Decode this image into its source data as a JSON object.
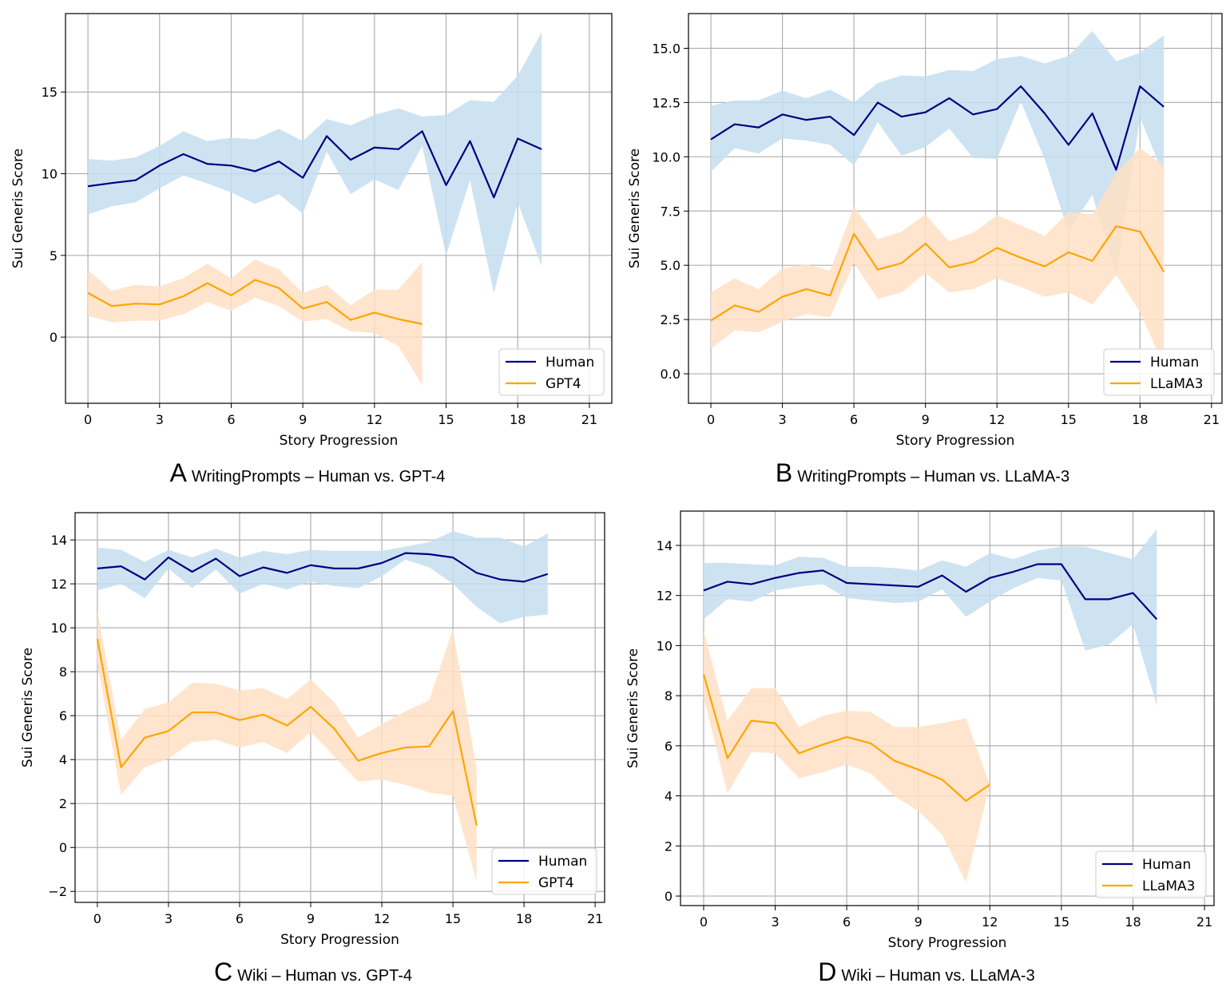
{
  "chart_data": [
    {
      "type": "line",
      "panel_label": "A",
      "title": "WritingPrompts – Human vs. GPT-4",
      "xlabel": "Story Progression",
      "ylabel": "Sui Generis Score",
      "xlim": [
        -0.94,
        21.94
      ],
      "ylim": [
        -4.05,
        19.8
      ],
      "xticks": [
        0,
        3,
        6,
        9,
        12,
        15,
        18,
        21
      ],
      "yticks": [
        0,
        5,
        10,
        15
      ],
      "ytick_labels": [
        "0",
        "5",
        "10",
        "15"
      ],
      "grid": true,
      "legend": "lower-right",
      "series": [
        {
          "name": "Human",
          "color": "#000080",
          "band_color": "#c5def0",
          "x": [
            0,
            1,
            2,
            3,
            4,
            5,
            6,
            7,
            8,
            9,
            10,
            11,
            12,
            13,
            14,
            15,
            16,
            17,
            18,
            19
          ],
          "values": [
            9.23,
            9.43,
            9.6,
            10.5,
            11.2,
            10.6,
            10.5,
            10.15,
            10.75,
            9.75,
            12.3,
            10.85,
            11.6,
            11.5,
            12.6,
            9.3,
            12.0,
            8.55,
            12.15,
            11.5
          ],
          "upper": [
            10.9,
            10.8,
            11.0,
            11.7,
            12.6,
            12.0,
            12.2,
            12.1,
            12.75,
            12.0,
            13.35,
            12.95,
            13.6,
            14.0,
            13.5,
            13.6,
            14.5,
            14.4,
            16.0,
            18.65
          ],
          "lower": [
            7.5,
            8.0,
            8.25,
            9.1,
            9.9,
            9.4,
            8.85,
            8.15,
            8.75,
            7.55,
            11.35,
            8.75,
            9.65,
            9.0,
            11.7,
            5.0,
            9.6,
            2.7,
            8.25,
            4.35
          ]
        },
        {
          "name": "GPT4",
          "color": "#ffa500",
          "band_color": "#ffe0c4",
          "x": [
            0,
            1,
            2,
            3,
            4,
            5,
            6,
            7,
            8,
            9,
            10,
            11,
            12,
            13,
            14
          ],
          "values": [
            2.7,
            1.9,
            2.05,
            2.0,
            2.5,
            3.3,
            2.55,
            3.5,
            3.0,
            1.75,
            2.15,
            1.05,
            1.5,
            1.1,
            0.8
          ],
          "upper": [
            4.1,
            2.85,
            3.2,
            3.1,
            3.6,
            4.5,
            3.6,
            4.75,
            4.15,
            2.7,
            3.2,
            1.95,
            2.9,
            2.9,
            4.6
          ],
          "lower": [
            1.3,
            0.9,
            1.0,
            1.0,
            1.4,
            2.15,
            1.6,
            2.4,
            1.9,
            0.95,
            1.1,
            0.35,
            0.25,
            -0.55,
            -2.95
          ]
        }
      ]
    },
    {
      "type": "line",
      "panel_label": "B",
      "title": "WritingPrompts – Human vs. LLaMA-3",
      "xlabel": "Story Progression",
      "ylabel": "Sui Generis Score",
      "xlim": [
        -0.94,
        21.44
      ],
      "ylim": [
        -1.36,
        16.6
      ],
      "xticks": [
        0,
        3,
        6,
        9,
        12,
        15,
        18,
        21
      ],
      "yticks": [
        0,
        2.5,
        5,
        7.5,
        10,
        12.5,
        15
      ],
      "ytick_labels": [
        "0.0",
        "2.5",
        "5.0",
        "7.5",
        "10.0",
        "12.5",
        "15.0"
      ],
      "grid": true,
      "legend": "lower-right",
      "series": [
        {
          "name": "Human",
          "color": "#000080",
          "band_color": "#c5def0",
          "x": [
            0,
            1,
            2,
            3,
            4,
            5,
            6,
            7,
            8,
            9,
            10,
            11,
            12,
            13,
            14,
            15,
            16,
            17,
            18,
            19
          ],
          "values": [
            10.8,
            11.5,
            11.35,
            11.95,
            11.7,
            11.85,
            11.0,
            12.5,
            11.85,
            12.05,
            12.7,
            11.95,
            12.2,
            13.25,
            12.0,
            10.55,
            12.0,
            9.4,
            13.25,
            12.3
          ],
          "upper": [
            12.35,
            12.6,
            12.6,
            13.05,
            12.7,
            13.1,
            12.5,
            13.4,
            13.75,
            13.7,
            14.0,
            13.95,
            14.5,
            14.65,
            14.3,
            14.65,
            15.8,
            14.4,
            14.8,
            15.6
          ],
          "lower": [
            9.3,
            10.4,
            10.15,
            10.85,
            10.75,
            10.55,
            9.6,
            11.6,
            10.05,
            10.45,
            11.3,
            9.95,
            9.9,
            12.55,
            9.9,
            6.55,
            8.25,
            4.5,
            11.8,
            9.15
          ]
        },
        {
          "name": "LLaMA3",
          "color": "#ffa500",
          "band_color": "#ffe0c4",
          "x": [
            0,
            1,
            2,
            3,
            4,
            5,
            6,
            7,
            8,
            9,
            10,
            11,
            12,
            13,
            14,
            15,
            16,
            17,
            18,
            19
          ],
          "values": [
            2.45,
            3.15,
            2.85,
            3.55,
            3.9,
            3.6,
            6.45,
            4.8,
            5.1,
            6.0,
            4.9,
            5.15,
            5.8,
            5.35,
            4.95,
            5.6,
            5.2,
            6.8,
            6.55,
            4.7
          ],
          "upper": [
            3.75,
            4.4,
            3.9,
            4.85,
            5.05,
            4.75,
            7.7,
            6.2,
            6.55,
            7.35,
            6.1,
            6.5,
            7.3,
            6.85,
            6.35,
            7.45,
            7.35,
            9.25,
            10.4,
            9.6
          ],
          "lower": [
            1.15,
            2.0,
            1.9,
            2.4,
            2.75,
            2.6,
            5.1,
            3.45,
            3.75,
            4.65,
            3.75,
            3.9,
            4.4,
            4.0,
            3.55,
            3.75,
            3.2,
            4.55,
            2.85,
            0.35
          ]
        }
      ]
    },
    {
      "type": "line",
      "panel_label": "C",
      "title": "Wiki – Human vs. GPT-4",
      "xlabel": "Story Progression",
      "ylabel": "Sui Generis Score",
      "xlim": [
        -0.94,
        21.4
      ],
      "ylim": [
        -2.5,
        15.24
      ],
      "xticks": [
        0,
        3,
        6,
        9,
        12,
        15,
        18,
        21
      ],
      "yticks": [
        -2,
        0,
        2,
        4,
        6,
        8,
        10,
        12,
        14
      ],
      "ytick_labels": [
        "−2",
        "0",
        "2",
        "4",
        "6",
        "8",
        "10",
        "12",
        "14"
      ],
      "grid": true,
      "legend": "lower-right",
      "series": [
        {
          "name": "Human",
          "color": "#000080",
          "band_color": "#c5def0",
          "x": [
            0,
            1,
            2,
            3,
            4,
            5,
            6,
            7,
            8,
            9,
            10,
            11,
            12,
            13,
            14,
            15,
            16,
            17,
            18,
            19
          ],
          "values": [
            12.7,
            12.8,
            12.2,
            13.2,
            12.55,
            13.15,
            12.35,
            12.75,
            12.5,
            12.85,
            12.7,
            12.7,
            12.95,
            13.4,
            13.35,
            13.2,
            12.5,
            12.2,
            12.1,
            12.45
          ],
          "upper": [
            13.65,
            13.55,
            13.0,
            13.55,
            13.2,
            13.6,
            13.2,
            13.5,
            13.35,
            13.55,
            13.5,
            13.5,
            13.5,
            13.7,
            13.9,
            14.4,
            14.1,
            14.1,
            13.7,
            14.3
          ],
          "lower": [
            11.7,
            12.0,
            11.35,
            12.7,
            11.8,
            12.65,
            11.55,
            12.0,
            11.75,
            12.1,
            11.9,
            11.8,
            12.35,
            13.1,
            12.75,
            12.0,
            10.95,
            10.2,
            10.5,
            10.6
          ]
        },
        {
          "name": "GPT4",
          "color": "#ffa500",
          "band_color": "#ffe0c4",
          "x": [
            0,
            1,
            2,
            3,
            4,
            5,
            6,
            7,
            8,
            9,
            10,
            11,
            12,
            13,
            14,
            15,
            16
          ],
          "values": [
            9.5,
            3.65,
            5.0,
            5.3,
            6.15,
            6.15,
            5.8,
            6.05,
            5.55,
            6.4,
            5.4,
            3.95,
            4.3,
            4.55,
            4.6,
            6.2,
            1.0
          ],
          "upper": [
            10.8,
            4.9,
            6.3,
            6.6,
            7.5,
            7.45,
            7.15,
            7.25,
            6.75,
            7.65,
            6.6,
            5.0,
            5.6,
            6.2,
            6.7,
            9.95,
            3.55
          ],
          "lower": [
            8.35,
            2.4,
            3.65,
            4.05,
            4.8,
            4.9,
            4.55,
            4.8,
            4.3,
            5.25,
            4.15,
            3.0,
            3.1,
            2.85,
            2.5,
            2.35,
            -1.55
          ]
        }
      ]
    },
    {
      "type": "line",
      "panel_label": "D",
      "title": "Wiki – Human vs. LLaMA-3",
      "xlabel": "Story Progression",
      "ylabel": "Sui Generis Score",
      "xlim": [
        -0.97,
        21.4
      ],
      "ylim": [
        -0.38,
        15.37
      ],
      "xticks": [
        0,
        3,
        6,
        9,
        12,
        15,
        18,
        21
      ],
      "yticks": [
        0,
        2,
        4,
        6,
        8,
        10,
        12,
        14
      ],
      "ytick_labels": [
        "0",
        "2",
        "4",
        "6",
        "8",
        "10",
        "12",
        "14"
      ],
      "grid": true,
      "legend": "lower-right",
      "series": [
        {
          "name": "Human",
          "color": "#000080",
          "band_color": "#c5def0",
          "x": [
            0,
            1,
            2,
            3,
            4,
            5,
            6,
            7,
            8,
            9,
            10,
            11,
            12,
            13,
            14,
            15,
            16,
            17,
            18,
            19
          ],
          "values": [
            12.2,
            12.55,
            12.45,
            12.7,
            12.9,
            13.0,
            12.5,
            12.45,
            12.4,
            12.35,
            12.8,
            12.15,
            12.7,
            12.95,
            13.25,
            13.25,
            11.85,
            11.85,
            12.1,
            11.05
          ],
          "upper": [
            13.3,
            13.3,
            13.25,
            13.2,
            13.55,
            13.5,
            13.15,
            13.15,
            13.1,
            13.0,
            13.4,
            13.15,
            13.7,
            13.45,
            13.8,
            13.95,
            13.95,
            13.7,
            13.45,
            14.65
          ],
          "lower": [
            11.05,
            11.85,
            11.75,
            12.2,
            12.35,
            12.45,
            11.9,
            11.8,
            11.7,
            11.75,
            12.25,
            11.15,
            11.75,
            12.3,
            12.7,
            12.6,
            9.8,
            10.05,
            10.85,
            7.6
          ]
        },
        {
          "name": "LLaMA3",
          "color": "#ffa500",
          "band_color": "#ffe0c4",
          "x": [
            0,
            1,
            2,
            3,
            4,
            5,
            6,
            7,
            8,
            9,
            10,
            11,
            12
          ],
          "values": [
            8.85,
            5.5,
            7.0,
            6.9,
            5.7,
            6.05,
            6.35,
            6.1,
            5.4,
            5.05,
            4.65,
            3.8,
            4.45
          ],
          "upper": [
            10.6,
            7.0,
            8.3,
            8.3,
            6.75,
            7.2,
            7.4,
            7.35,
            6.75,
            6.75,
            6.9,
            7.1,
            4.45
          ],
          "lower": [
            7.95,
            4.1,
            5.75,
            5.7,
            4.7,
            4.95,
            5.25,
            4.9,
            4.0,
            3.4,
            2.45,
            0.55,
            4.45
          ]
        }
      ]
    }
  ]
}
